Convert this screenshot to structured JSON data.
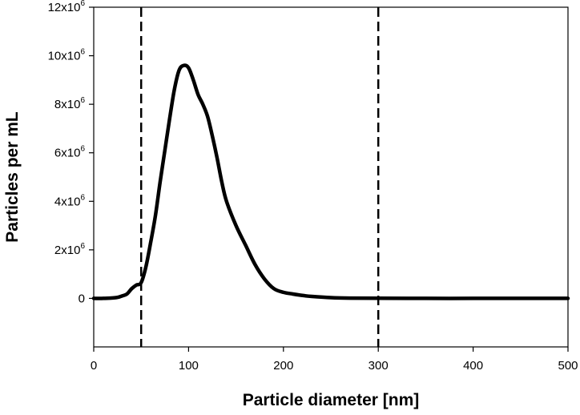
{
  "chart_data": {
    "type": "line",
    "title": "",
    "xlabel": "Particle diameter [nm]",
    "ylabel": "Particles per mL",
    "xlim": [
      0,
      500
    ],
    "ylim": [
      -2000000,
      12000000
    ],
    "x_ticks": [
      0,
      100,
      200,
      300,
      400,
      500
    ],
    "x_tick_labels": [
      "0",
      "100",
      "200",
      "300",
      "400",
      "500"
    ],
    "y_ticks": [
      {
        "value": 0,
        "mantissa": "0",
        "exp": ""
      },
      {
        "value": 2000000,
        "mantissa": "2x10",
        "exp": "6"
      },
      {
        "value": 4000000,
        "mantissa": "4x10",
        "exp": "6"
      },
      {
        "value": 6000000,
        "mantissa": "6x10",
        "exp": "6"
      },
      {
        "value": 8000000,
        "mantissa": "8x10",
        "exp": "6"
      },
      {
        "value": 10000000,
        "mantissa": "10x10",
        "exp": "6"
      },
      {
        "value": 12000000,
        "mantissa": "12x10",
        "exp": "6"
      }
    ],
    "grid": false,
    "reference_lines": [
      {
        "axis": "x",
        "value": 50,
        "style": "dashed"
      },
      {
        "axis": "x",
        "value": 300,
        "style": "dashed"
      }
    ],
    "series": [
      {
        "color": "#000000",
        "x": [
          0,
          10,
          20,
          25,
          30,
          35,
          40,
          45,
          50,
          55,
          60,
          65,
          70,
          75,
          80,
          85,
          90,
          95,
          100,
          105,
          110,
          115,
          120,
          125,
          130,
          135,
          140,
          150,
          160,
          170,
          180,
          190,
          200,
          210,
          220,
          230,
          250,
          270,
          300,
          350,
          400,
          450,
          500
        ],
        "y": [
          0,
          0,
          20000,
          40000,
          100000,
          180000,
          400000,
          550000,
          650000,
          1300000,
          2300000,
          3400000,
          4800000,
          6100000,
          7400000,
          8600000,
          9400000,
          9600000,
          9500000,
          9000000,
          8400000,
          8000000,
          7500000,
          6700000,
          5800000,
          4800000,
          4000000,
          3000000,
          2200000,
          1400000,
          800000,
          400000,
          250000,
          180000,
          120000,
          80000,
          30000,
          10000,
          5000,
          0,
          0,
          0,
          0
        ]
      }
    ]
  }
}
